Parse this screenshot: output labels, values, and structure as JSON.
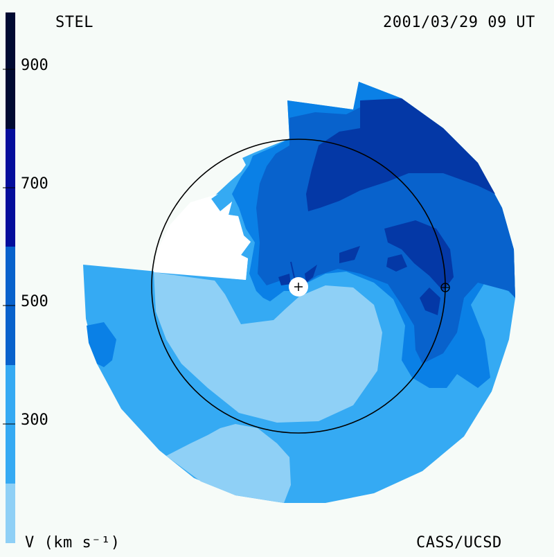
{
  "header": {
    "source": "STEL",
    "timestamp": "2001/03/29 09 UT"
  },
  "footer": {
    "unit_label": "V (km s⁻¹)",
    "credit": "CASS/UCSD"
  },
  "colorbar": {
    "tick_labels": [
      "900",
      "700",
      "500",
      "300"
    ],
    "bands": [
      {
        "color": "#8fd0f6",
        "label": "below 300"
      },
      {
        "color": "#35aaf3",
        "label": "300-400"
      },
      {
        "color": "#0a80e6",
        "label": "400-500"
      },
      {
        "color": "#0862cc",
        "label": "500-600"
      },
      {
        "color": "#0438a6",
        "label": "600-700"
      },
      {
        "color": "#021a78",
        "label": "700-800"
      },
      {
        "color": "#000c3a",
        "label": "above 800"
      }
    ]
  },
  "map": {
    "center_marker": "sun-plus-marker",
    "earth_marker": "earth-orbit-marker",
    "orbit_circle": "earth-orbit-circle"
  }
}
